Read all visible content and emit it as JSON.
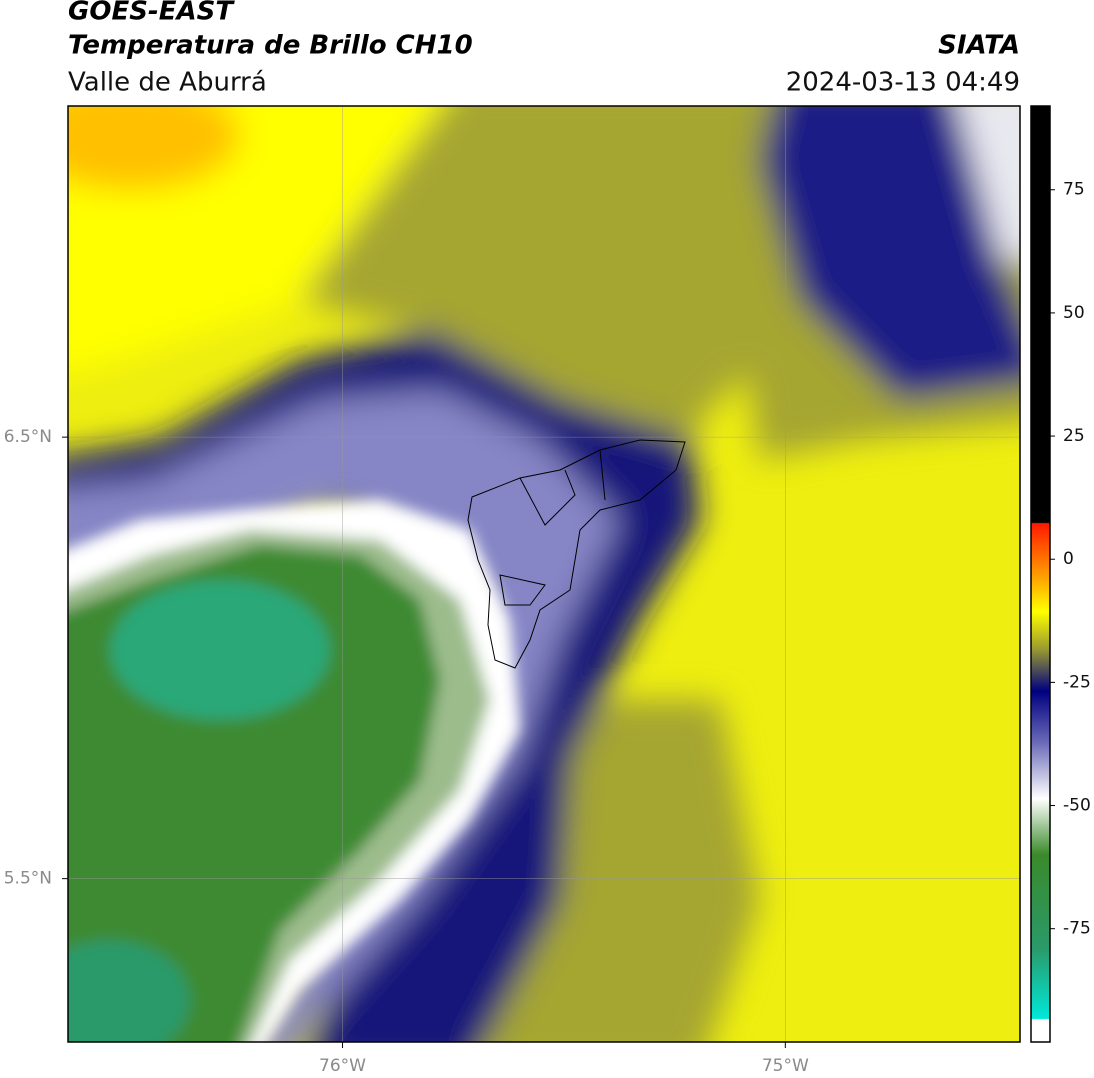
{
  "header": {
    "title": "GOES-EAST",
    "subtitle": "Temperatura de Brillo CH10",
    "region": "Valle de Aburrá",
    "source": "SIATA",
    "datetime": "2024-03-13 04:49"
  },
  "map": {
    "type": "map",
    "xlim": [
      -76.62,
      -74.47
    ],
    "ylim": [
      5.13,
      7.25
    ],
    "xticks": [
      {
        "value": -76,
        "label": "76°W"
      },
      {
        "value": -75,
        "label": "75°W"
      }
    ],
    "yticks": [
      {
        "value": 6.5,
        "label": "6.5°N"
      },
      {
        "value": 5.5,
        "label": "5.5°N"
      }
    ],
    "grid": true
  },
  "colorbar": {
    "lim": [
      -98,
      92
    ],
    "ticks": [
      75,
      50,
      25,
      0,
      -25,
      -50,
      -75
    ]
  }
}
